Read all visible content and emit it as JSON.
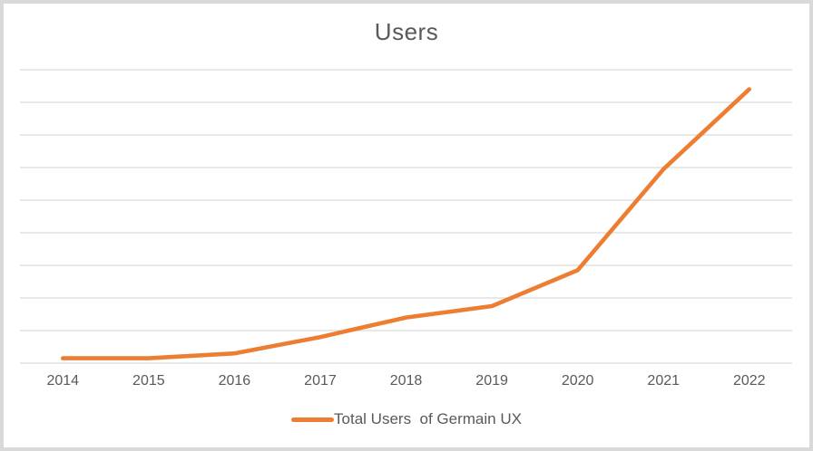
{
  "chart_data": {
    "type": "line",
    "title": "Users",
    "categories": [
      "2014",
      "2015",
      "2016",
      "2017",
      "2018",
      "2019",
      "2020",
      "2021",
      "2022"
    ],
    "series": [
      {
        "name": "Total Users  of Germain UX",
        "values": [
          0.15,
          0.15,
          0.3,
          0.8,
          1.4,
          1.75,
          2.85,
          5.95,
          8.4
        ]
      }
    ],
    "xlabel": "",
    "ylabel": "",
    "ylim": [
      0,
      9
    ],
    "y_tick_labels_visible": false,
    "y_units_note": "gridline units (y axis is unlabeled; 9 equal gridline intervals)",
    "grid": "horizontal",
    "legend_position": "bottom-center",
    "colors": {
      "series": "#ED7D31",
      "gridline": "#D9D9D9",
      "axis_line": "#D9D9D9",
      "text": "#595959",
      "frame": "#D9D9D9",
      "background": "#FFFFFF"
    }
  }
}
